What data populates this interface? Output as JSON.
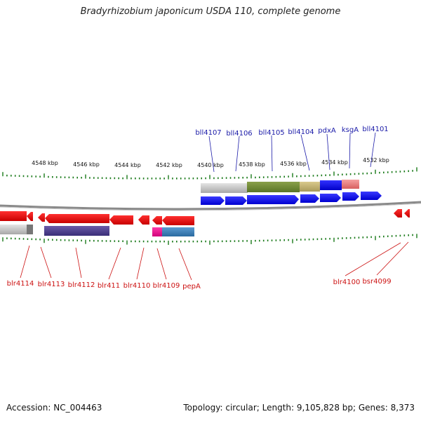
{
  "title": "Bradyrhizobium japonicum USDA 110, complete genome",
  "footer": {
    "accession": "Accession: NC_004463",
    "summary": "Topology: circular; Length: 9,105,828 bp; Genes: 8,373"
  },
  "ruler": {
    "labels": [
      "4548 kbp",
      "4546 kbp",
      "4544 kbp",
      "4542 kbp",
      "4540 kbp",
      "4538 kbp",
      "4536 kbp",
      "4534 kbp",
      "4532 kbp"
    ]
  },
  "genes_top": [
    "bll4107",
    "bll4106",
    "bll4105",
    "bll4104",
    "pdxA",
    "ksgA",
    "bll4101"
  ],
  "genes_bottom": [
    "blr4114",
    "blr4113",
    "blr4112",
    "blr411",
    "blr4110",
    "blr4109",
    "pepA",
    "blr4100",
    "bsr4099"
  ],
  "colors": {
    "forward_gene": "#0a0af0",
    "reverse_gene": "#ee0000",
    "top_label": "#1a1aa8",
    "bottom_label": "#cc1111",
    "tick": "#1a7a1a",
    "backbone": "#707070"
  }
}
